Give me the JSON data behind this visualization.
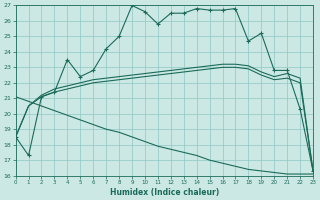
{
  "xlabel": "Humidex (Indice chaleur)",
  "bg_color": "#cce8e4",
  "grid_color": "#8fc8c2",
  "line_color": "#1a6b5a",
  "xlim": [
    0,
    23
  ],
  "ylim": [
    16,
    27
  ],
  "xticks": [
    0,
    1,
    2,
    3,
    4,
    5,
    6,
    7,
    8,
    9,
    10,
    11,
    12,
    13,
    14,
    15,
    16,
    17,
    18,
    19,
    20,
    21,
    22,
    23
  ],
  "yticks": [
    16,
    17,
    18,
    19,
    20,
    21,
    22,
    23,
    24,
    25,
    26,
    27
  ],
  "line_jagged_x": [
    0,
    1,
    2,
    3,
    4,
    5,
    6,
    7,
    8,
    9,
    10,
    11,
    12,
    13,
    14,
    15,
    16,
    17,
    18,
    19,
    20,
    21,
    22,
    23
  ],
  "line_jagged_y": [
    18.5,
    17.3,
    21.1,
    21.4,
    23.5,
    22.4,
    22.8,
    24.2,
    25.0,
    27.0,
    26.6,
    25.8,
    26.5,
    26.5,
    26.8,
    26.7,
    26.7,
    26.8,
    24.7,
    25.2,
    22.8,
    22.8,
    20.3,
    16.3
  ],
  "line_upper_x": [
    0,
    1,
    2,
    3,
    4,
    5,
    6,
    7,
    8,
    9,
    10,
    11,
    12,
    13,
    14,
    15,
    16,
    17,
    18,
    19,
    20,
    21,
    22,
    23
  ],
  "line_upper_y": [
    18.5,
    20.5,
    21.2,
    21.6,
    21.8,
    22.0,
    22.2,
    22.3,
    22.4,
    22.5,
    22.6,
    22.7,
    22.8,
    22.9,
    23.0,
    23.1,
    23.2,
    23.2,
    23.1,
    22.7,
    22.4,
    22.6,
    22.3,
    16.3
  ],
  "line_mid_x": [
    0,
    1,
    2,
    3,
    4,
    5,
    6,
    7,
    8,
    9,
    10,
    11,
    12,
    13,
    14,
    15,
    16,
    17,
    18,
    19,
    20,
    21,
    22,
    23
  ],
  "line_mid_y": [
    18.5,
    20.5,
    21.1,
    21.4,
    21.6,
    21.8,
    22.0,
    22.1,
    22.2,
    22.3,
    22.4,
    22.5,
    22.6,
    22.7,
    22.8,
    22.9,
    23.0,
    23.0,
    22.9,
    22.5,
    22.2,
    22.3,
    22.0,
    16.3
  ],
  "line_lower_x": [
    0,
    1,
    2,
    3,
    4,
    5,
    6,
    7,
    8,
    9,
    10,
    11,
    12,
    13,
    14,
    15,
    16,
    17,
    18,
    19,
    20,
    21,
    22,
    23
  ],
  "line_lower_y": [
    21.1,
    20.8,
    20.5,
    20.2,
    19.9,
    19.6,
    19.3,
    19.0,
    18.8,
    18.5,
    18.2,
    17.9,
    17.7,
    17.5,
    17.3,
    17.0,
    16.8,
    16.6,
    16.4,
    16.3,
    16.2,
    16.1,
    16.1,
    16.1
  ]
}
